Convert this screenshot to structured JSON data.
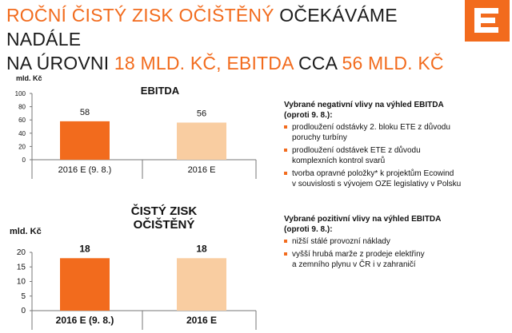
{
  "header": {
    "title_line1_highlight": "ROČNÍ ČISTÝ ZISK OČIŠTĚNÝ",
    "title_line1_rest": " OČEKÁVÁME NADÁLE",
    "title_line2_a": "NA ÚROVNI ",
    "title_line2_b": "18 MLD. KČ, EBITDA",
    "title_line2_c": " CCA ",
    "title_line2_d": "56 MLD. KČ"
  },
  "logo": {
    "icon": "cez-logo-icon",
    "color": "#f26b1d"
  },
  "colors": {
    "accent": "#f26b1d",
    "light": "#f9cda1"
  },
  "chart_data": [
    {
      "type": "bar",
      "title": "EBITDA",
      "unit_label": "mld. Kč",
      "categories": [
        "2016 E (9. 8.)",
        "2016 E"
      ],
      "values": [
        58,
        56
      ],
      "ylim": [
        0,
        100
      ],
      "yticks": [
        0,
        20,
        40,
        60,
        80,
        100
      ],
      "bar_colors": [
        "#f26b1d",
        "#f9cda1"
      ],
      "grid": false
    },
    {
      "type": "bar",
      "title": "ČISTÝ ZISK\nOČIŠTĚNÝ",
      "unit_label": "mld. Kč",
      "categories": [
        "2016 E (9. 8.)",
        "2016 E"
      ],
      "values": [
        18,
        18
      ],
      "ylim": [
        0,
        20
      ],
      "yticks": [
        0,
        5,
        10,
        15,
        20
      ],
      "bar_colors": [
        "#f26b1d",
        "#f9cda1"
      ],
      "grid": false
    }
  ],
  "negative": {
    "heading": "Vybrané negativní vlivy na výhled EBITDA\n(oproti 9. 8.):",
    "items": [
      "prodloužení odstávky 2. bloku ETE z důvodu\nporuchy turbíny",
      "prodloužení odstávek ETE z důvodu\nkomplexních kontrol svarů",
      "tvorba opravné položky* k projektům Ecowind\nv souvislosti s vývojem OZE legislativy v Polsku"
    ]
  },
  "positive": {
    "heading": "Vybrané pozitivní vlivy na výhled EBITDA\n(oproti 9. 8.):",
    "items": [
      "nižší stálé provozní náklady",
      "vyšší hrubá marže z prodeje elektřiny\na zemního plynu v ČR i v zahraničí"
    ]
  }
}
